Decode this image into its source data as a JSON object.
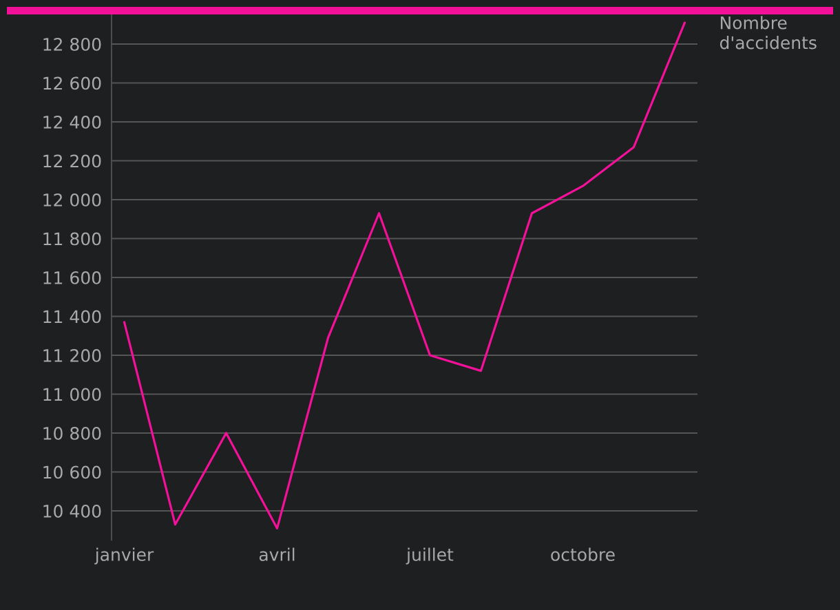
{
  "chart_data": {
    "type": "line",
    "categories": [
      "janvier",
      null,
      null,
      "avril",
      null,
      null,
      "juillet",
      null,
      null,
      "octobre",
      null,
      null
    ],
    "series": [
      {
        "name": "Nombre d'accidents",
        "color": "#f4119a",
        "values": [
          11370,
          10330,
          10800,
          10310,
          11290,
          11930,
          11200,
          11120,
          11930,
          12070,
          12270,
          12910
        ]
      }
    ],
    "ylim": [
      10250,
      12950
    ],
    "yticks": [
      {
        "value": 10400,
        "label": "10 400"
      },
      {
        "value": 10600,
        "label": "10 600"
      },
      {
        "value": 10800,
        "label": "10 800"
      },
      {
        "value": 11000,
        "label": "11 000"
      },
      {
        "value": 11200,
        "label": "11 200"
      },
      {
        "value": 11400,
        "label": "11 400"
      },
      {
        "value": 11600,
        "label": "11 600"
      },
      {
        "value": 11800,
        "label": "11 800"
      },
      {
        "value": 12000,
        "label": "12 000"
      },
      {
        "value": 12200,
        "label": "12 200"
      },
      {
        "value": 12400,
        "label": "12 400"
      },
      {
        "value": 12600,
        "label": "12 600"
      },
      {
        "value": 12800,
        "label": "12 800"
      }
    ],
    "grid": "y",
    "line_style": "solid"
  }
}
